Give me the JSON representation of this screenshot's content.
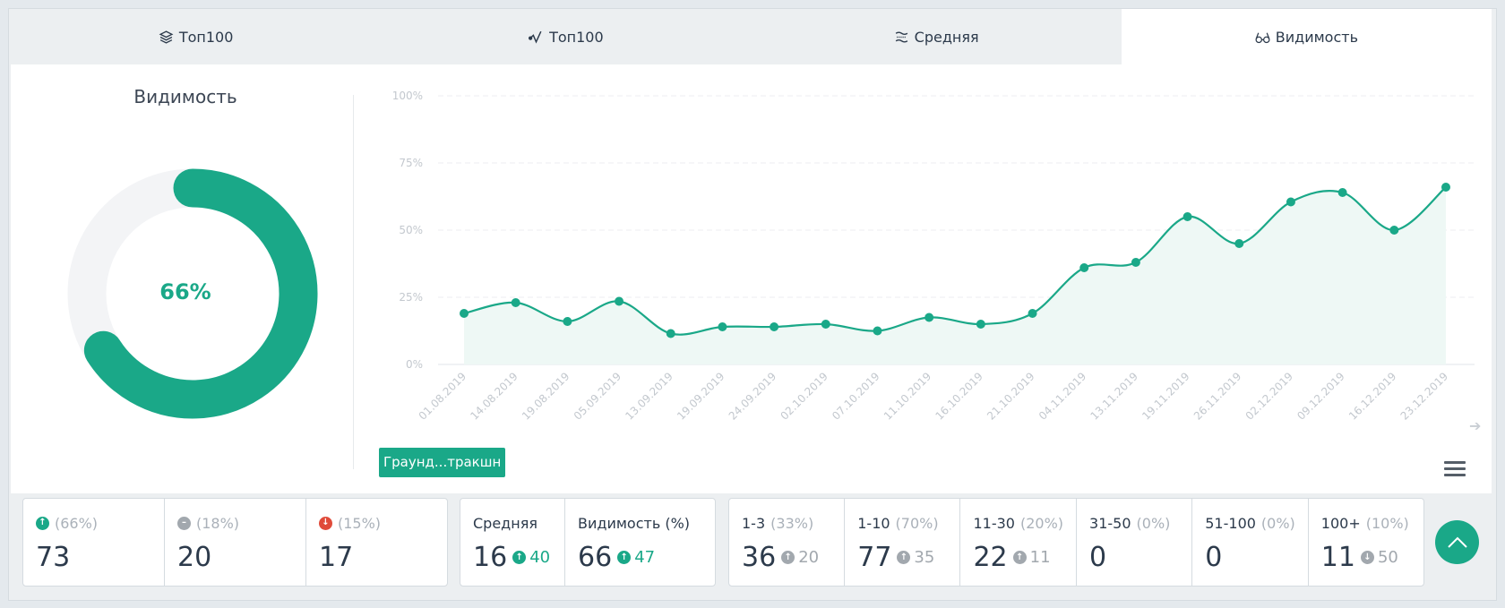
{
  "tabs": [
    {
      "label": "Топ100",
      "icon": "layers-icon"
    },
    {
      "label": "Топ100",
      "icon": "activity-icon"
    },
    {
      "label": "Средняя",
      "icon": "waves-icon"
    },
    {
      "label": "Видимость",
      "icon": "glasses-icon",
      "active": true
    }
  ],
  "left": {
    "title": "Видимость",
    "value_label": "66%",
    "value": 66
  },
  "chart_data": {
    "type": "line",
    "x": [
      "01.08.2019",
      "14.08.2019",
      "19.08.2019",
      "05.09.2019",
      "13.09.2019",
      "19.09.2019",
      "24.09.2019",
      "02.10.2019",
      "07.10.2019",
      "11.10.2019",
      "16.10.2019",
      "21.10.2019",
      "04.11.2019",
      "13.11.2019",
      "19.11.2019",
      "26.11.2019",
      "02.12.2019",
      "09.12.2019",
      "16.12.2019",
      "23.12.2019"
    ],
    "series": [
      {
        "name": "Граунд...тракшн",
        "values": [
          19,
          23,
          16,
          23.5,
          11.5,
          14,
          14,
          15,
          12.5,
          17.5,
          15,
          19,
          36,
          38,
          55,
          45,
          60.5,
          64,
          50,
          66
        ]
      }
    ],
    "yticks": [
      "0%",
      "25%",
      "50%",
      "75%",
      "100%"
    ],
    "ylim": [
      0,
      100
    ],
    "grid": true,
    "color": "#1aa888"
  },
  "legend_label": "Граунд...тракшн",
  "stats": {
    "changes": [
      {
        "pct": "(66%)",
        "value": "73",
        "icon": "arrow-up-circle-icon",
        "color": "g"
      },
      {
        "pct": "(18%)",
        "value": "20",
        "icon": "minus-circle-icon",
        "color": "gr"
      },
      {
        "pct": "(15%)",
        "value": "17",
        "icon": "arrow-down-circle-icon",
        "color": "r"
      }
    ],
    "avg": [
      {
        "label": "Средняя",
        "value": "16",
        "delta": "40"
      },
      {
        "label": "Видимость (%)",
        "value": "66",
        "delta": "47"
      }
    ],
    "ranges": [
      {
        "label": "1-3",
        "pct": "(33%)",
        "value": "36",
        "delta": "20",
        "dir": "up"
      },
      {
        "label": "1-10",
        "pct": "(70%)",
        "value": "77",
        "delta": "35",
        "dir": "up"
      },
      {
        "label": "11-30",
        "pct": "(20%)",
        "value": "22",
        "delta": "11",
        "dir": "up"
      },
      {
        "label": "31-50",
        "pct": "(0%)",
        "value": "0"
      },
      {
        "label": "51-100",
        "pct": "(0%)",
        "value": "0"
      },
      {
        "label": "100+",
        "pct": "(10%)",
        "value": "11",
        "delta": "50",
        "dir": "down"
      }
    ]
  }
}
